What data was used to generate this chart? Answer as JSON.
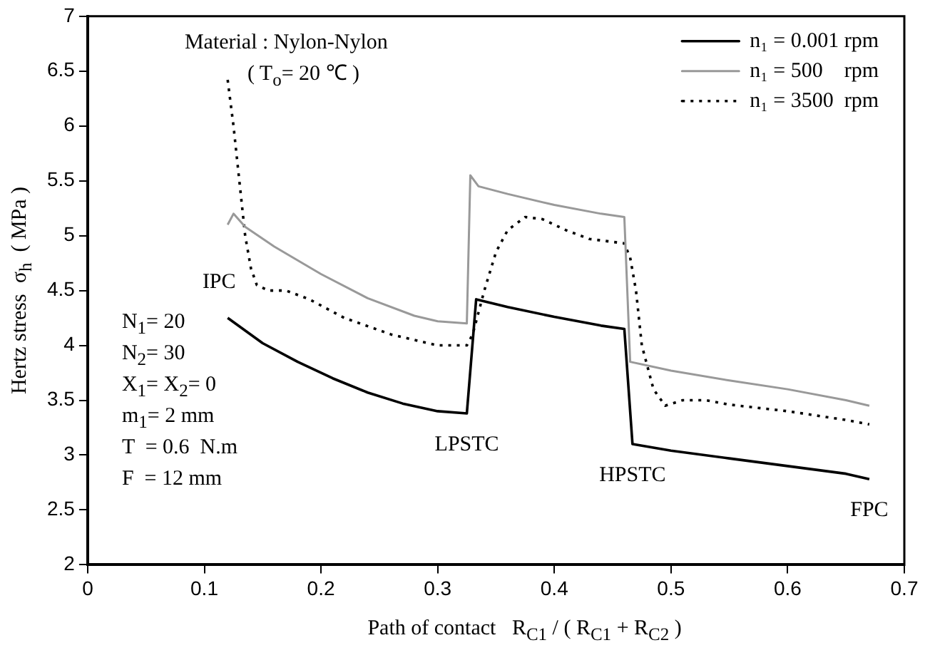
{
  "chart_data": {
    "type": "line",
    "xlabel": "Path of contact   R$_{C1}$ / ( R$_{C1}$ + R$_{C2}$ )",
    "ylabel": "Hertz stress  σ$_{h}$  ( MPa )",
    "xlim": [
      0,
      0.7
    ],
    "xticks": [
      0,
      0.1,
      0.2,
      0.3,
      0.4,
      0.5,
      0.6,
      0.7
    ],
    "ylim": [
      2,
      7
    ],
    "yticks": [
      2,
      2.5,
      3,
      3.5,
      4,
      4.5,
      5,
      5.5,
      6,
      6.5,
      7
    ],
    "grid": false,
    "legend": "top right",
    "marker": "none",
    "series": [
      {
        "name": "n₁ = 0.001 rpm",
        "color": "#000000",
        "line_style": "solid",
        "x": [
          0.12,
          0.15,
          0.18,
          0.21,
          0.24,
          0.27,
          0.3,
          0.325,
          0.333,
          0.36,
          0.4,
          0.44,
          0.46,
          0.467,
          0.5,
          0.55,
          0.6,
          0.65,
          0.67
        ],
        "values": [
          4.25,
          4.02,
          3.85,
          3.7,
          3.57,
          3.47,
          3.4,
          3.38,
          4.42,
          4.35,
          4.26,
          4.18,
          4.15,
          3.1,
          3.04,
          2.97,
          2.9,
          2.83,
          2.78
        ]
      },
      {
        "name": "n₁ = 500    rpm",
        "color": "#999999",
        "line_style": "solid",
        "x": [
          0.12,
          0.125,
          0.135,
          0.16,
          0.2,
          0.24,
          0.28,
          0.3,
          0.325,
          0.328,
          0.335,
          0.36,
          0.4,
          0.44,
          0.46,
          0.465,
          0.5,
          0.55,
          0.6,
          0.65,
          0.67
        ],
        "values": [
          5.1,
          5.2,
          5.08,
          4.9,
          4.65,
          4.43,
          4.27,
          4.22,
          4.2,
          5.55,
          5.45,
          5.38,
          5.28,
          5.2,
          5.17,
          3.85,
          3.77,
          3.68,
          3.6,
          3.5,
          3.45
        ]
      },
      {
        "name": "n₁ = 3500  rpm",
        "color": "#000000",
        "line_style": "dotted",
        "x": [
          0.12,
          0.125,
          0.13,
          0.135,
          0.14,
          0.145,
          0.155,
          0.17,
          0.19,
          0.22,
          0.26,
          0.3,
          0.325,
          0.33,
          0.34,
          0.35,
          0.36,
          0.375,
          0.39,
          0.41,
          0.43,
          0.46,
          0.465,
          0.47,
          0.475,
          0.485,
          0.495,
          0.51,
          0.53,
          0.55,
          0.6,
          0.65,
          0.67
        ],
        "values": [
          6.42,
          6.0,
          5.5,
          5.0,
          4.7,
          4.55,
          4.5,
          4.5,
          4.42,
          4.25,
          4.1,
          4.0,
          4.0,
          4.1,
          4.5,
          4.85,
          5.05,
          5.17,
          5.15,
          5.05,
          4.97,
          4.93,
          4.8,
          4.5,
          4.0,
          3.6,
          3.45,
          3.5,
          3.5,
          3.46,
          3.4,
          3.32,
          3.28
        ]
      }
    ],
    "annotations": [
      "Material : Nylon-Nylon",
      "( T$_{o}$= 20 ℃ )",
      "N$_{1}$= 20",
      "N$_{2}$= 30",
      "X$_{1}$= X$_{2}$= 0",
      "m$_{1}$= 2 mm",
      "T  = 0.6  N.m",
      "F  = 12 mm",
      {
        "text": "IPC",
        "x": 0.12,
        "y": 4.25
      },
      {
        "text": "LPSTC",
        "x": 0.325,
        "y": 3.38
      },
      {
        "text": "HPSTC",
        "x": 0.467,
        "y": 3.1
      },
      {
        "text": "FPC",
        "x": 0.67,
        "y": 2.78
      }
    ]
  }
}
